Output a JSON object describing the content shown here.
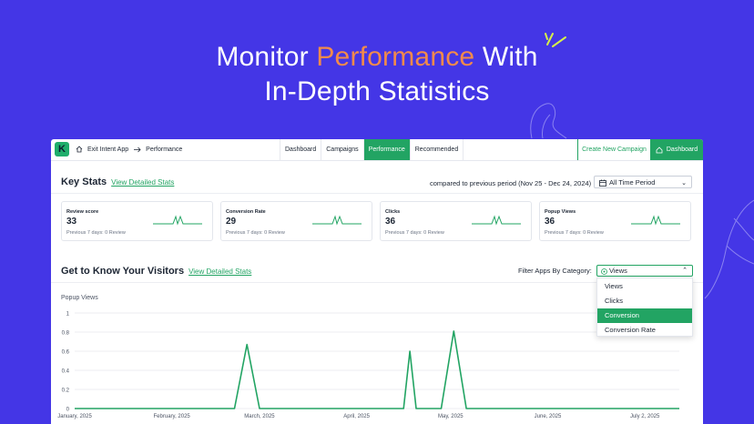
{
  "hero": {
    "line1_before": "Monitor ",
    "line1_accent": "Performance",
    "line1_after": " With",
    "line2": "In-Depth Statistics"
  },
  "colors": {
    "background": "#4436e6",
    "accent": "#f28a4b",
    "brand_green": "#22a463"
  },
  "app": {
    "logo_letter": "K",
    "breadcrumb": {
      "home_icon": "home-icon",
      "app": "Exit Intent App",
      "separator_icon": "arrow-right-icon",
      "current": "Performance"
    },
    "tabs": [
      {
        "label": "Dashboard",
        "active": false
      },
      {
        "label": "Campaigns",
        "active": false
      },
      {
        "label": "Performance",
        "active": true
      },
      {
        "label": "Recommended",
        "active": false
      }
    ],
    "create_button": "Create New Campaign",
    "dashboard_button": "Dashboard"
  },
  "key_stats": {
    "title": "Key Stats",
    "link": "View Detailed Stats",
    "compare_text": "compared to previous period (Nov 25 - Dec 24, 2024)",
    "period_select": "All Time Period",
    "cards": [
      {
        "label": "Review score",
        "value": "33",
        "sub": "Previous 7 days: 0 Review"
      },
      {
        "label": "Conversion Rate",
        "value": "29",
        "sub": "Previous 7 days: 0 Review"
      },
      {
        "label": "Clicks",
        "value": "36",
        "sub": "Previous 7 days: 0 Review"
      },
      {
        "label": "Popup Views",
        "value": "36",
        "sub": "Previous 7 days: 0 Review"
      }
    ]
  },
  "visitors": {
    "title": "Get to Know Your Visitors",
    "link": "View Detailed Stats",
    "filter_label": "Filter Apps By Category:",
    "filter_value": "Views",
    "dropdown_options": [
      {
        "label": "Views",
        "selected": false
      },
      {
        "label": "Clicks",
        "selected": false
      },
      {
        "label": "Conversion",
        "selected": true
      },
      {
        "label": "Conversion Rate",
        "selected": false
      }
    ]
  },
  "chart_data": {
    "type": "line",
    "title": "Popup Views",
    "yticks": [
      "0",
      "0.2",
      "0.4",
      "0.6",
      "0.8",
      "1"
    ],
    "ylim": [
      0,
      1
    ],
    "xlim": [
      0,
      193
    ],
    "xticks": [
      {
        "label": "January, 2025",
        "x": 0
      },
      {
        "label": "February, 2025",
        "x": 31
      },
      {
        "label": "March, 2025",
        "x": 59
      },
      {
        "label": "April, 2025",
        "x": 90
      },
      {
        "label": "May, 2025",
        "x": 120
      },
      {
        "label": "June, 2025",
        "x": 151
      },
      {
        "label": "July 2, 2025",
        "x": 182
      }
    ],
    "series": [
      {
        "color": "#22a463",
        "points": [
          [
            0,
            0
          ],
          [
            51,
            0
          ],
          [
            55,
            0.67
          ],
          [
            59,
            0
          ],
          [
            105,
            0
          ],
          [
            107,
            0.6
          ],
          [
            109,
            0
          ],
          [
            117,
            0
          ],
          [
            121,
            0.81
          ],
          [
            125,
            0
          ],
          [
            193,
            0
          ]
        ]
      }
    ]
  }
}
